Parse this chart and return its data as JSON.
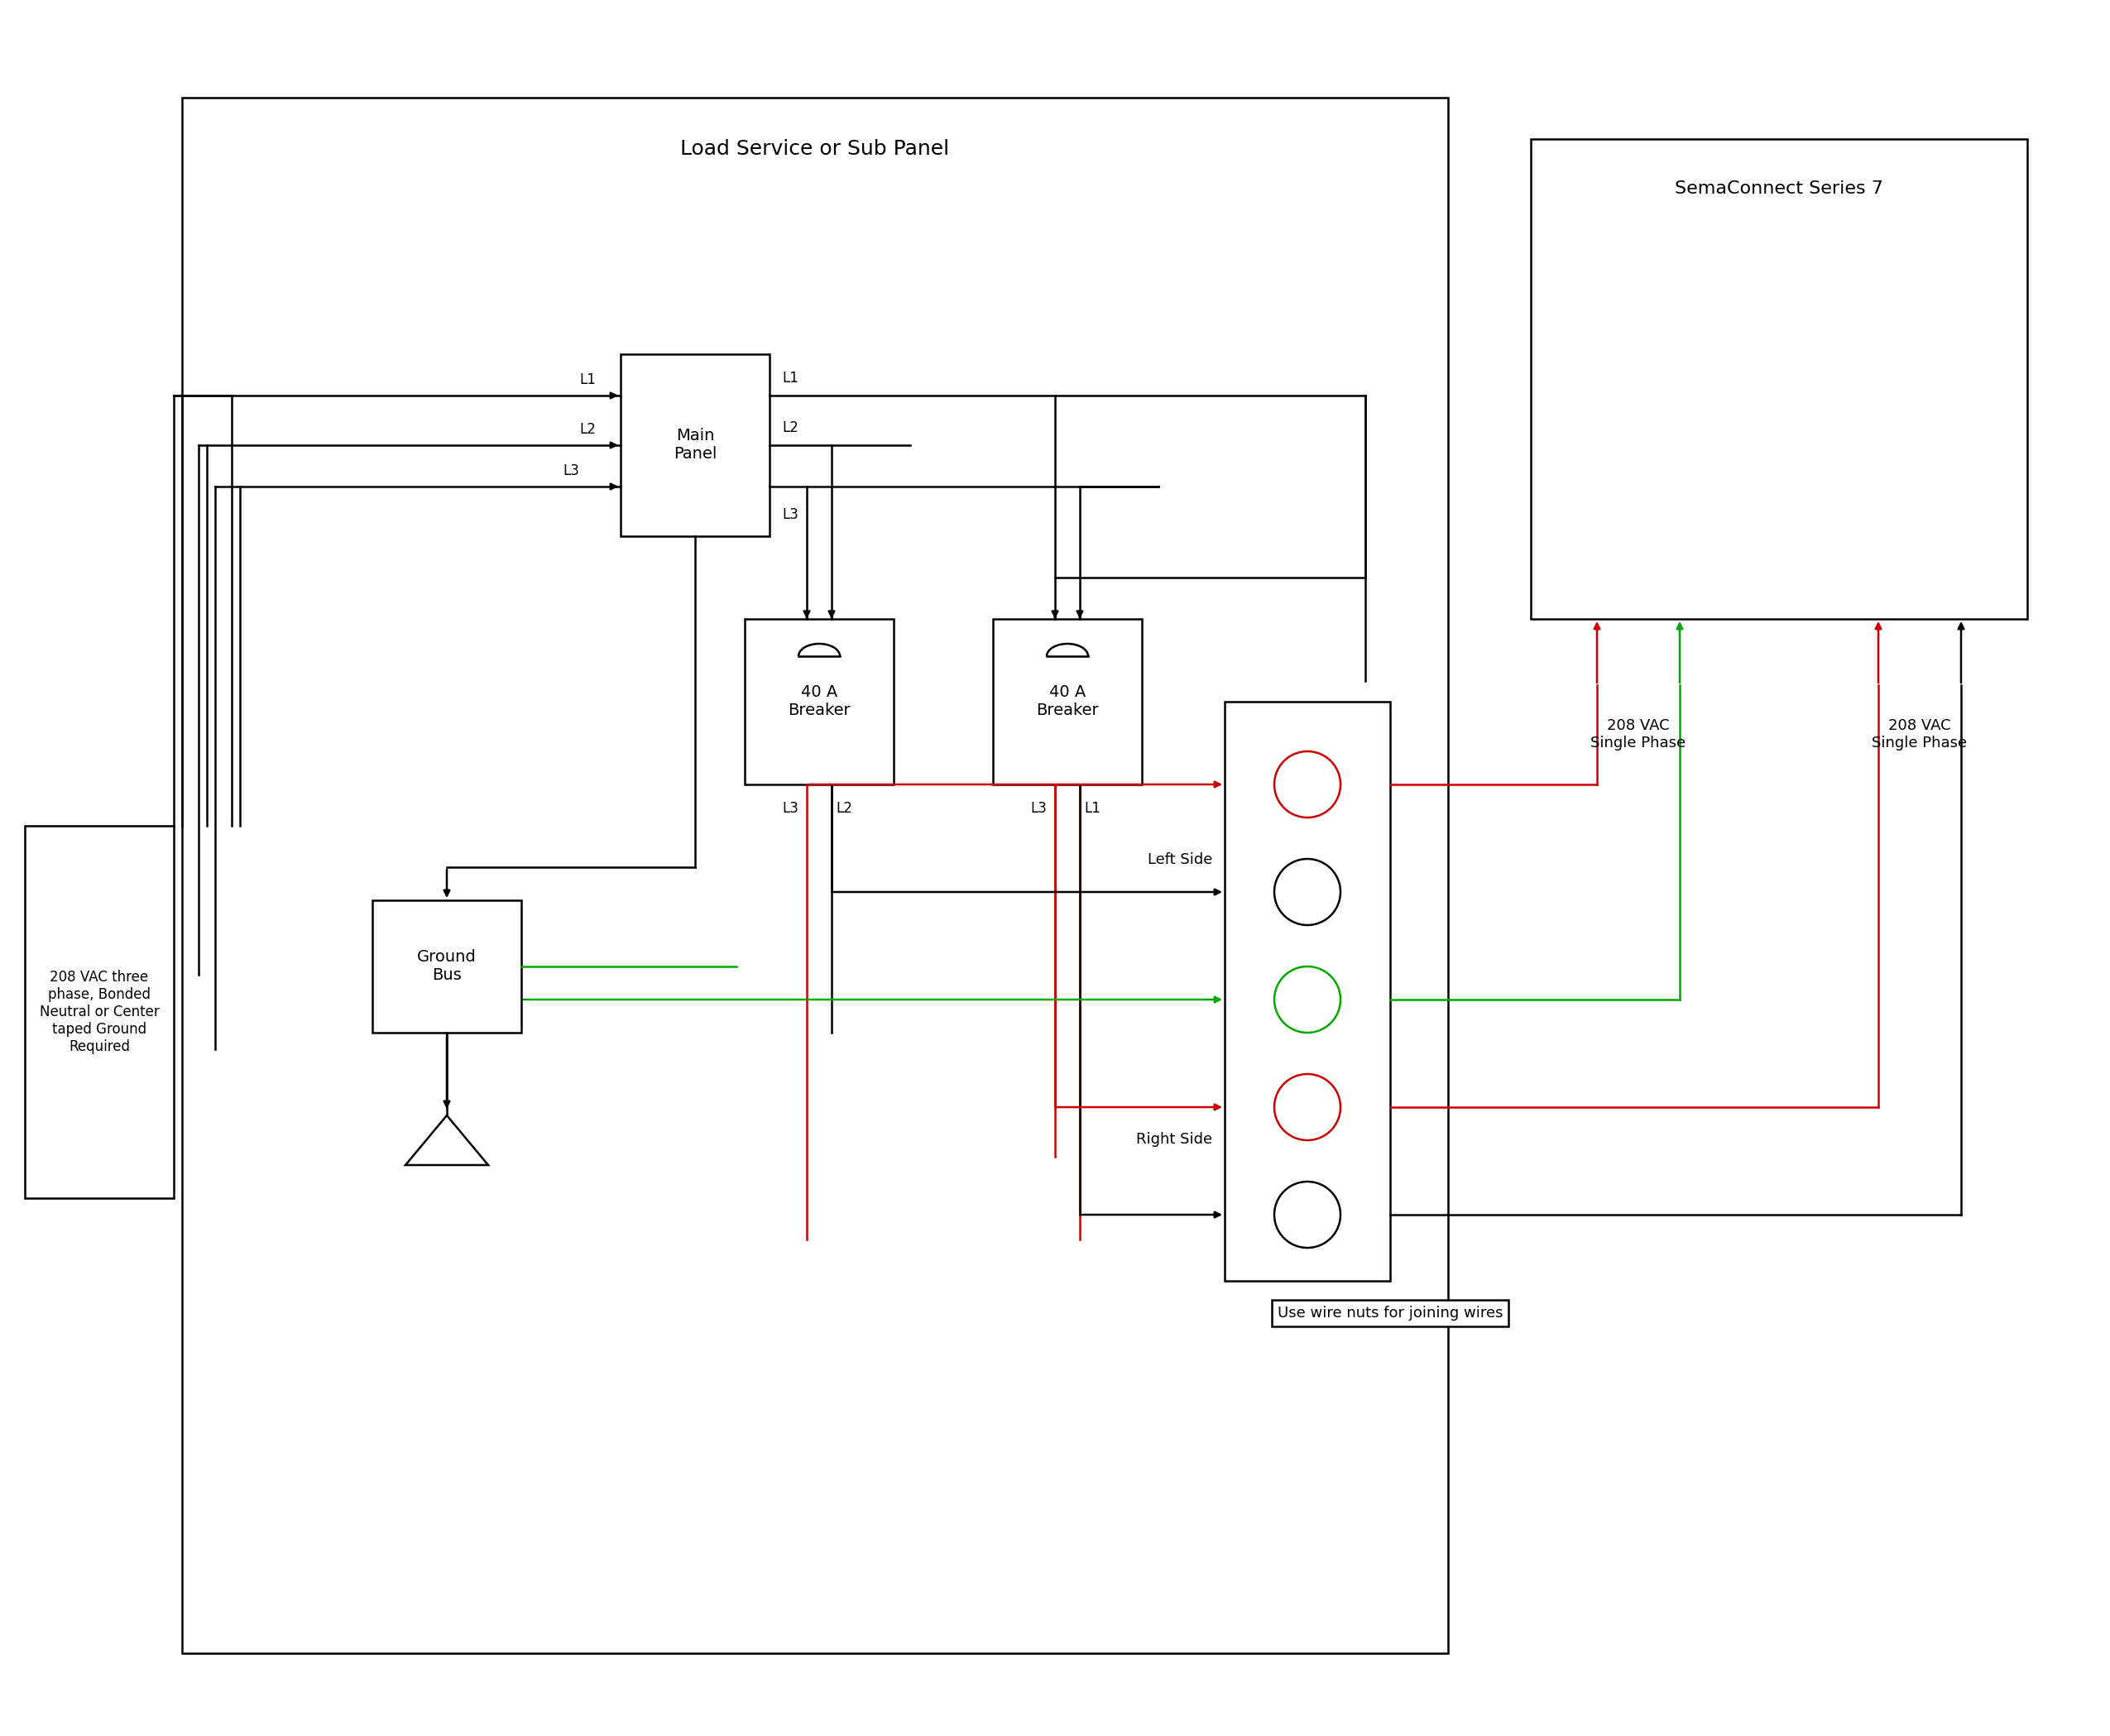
{
  "bg_color": "#ffffff",
  "line_color": "#000000",
  "red_color": "#cc0000",
  "green_color": "#00aa00",
  "title": "Load Service or Sub Panel",
  "sema_title": "SemaConnect Series 7",
  "source_label": "208 VAC three\nphase, Bonded\nNeutral or Center\ntaped Ground\nRequired",
  "ground_label": "Ground\nBus",
  "left_label": "Left Side",
  "right_label": "Right Side",
  "wire_nut_label": "Use wire nuts for joining wires",
  "phase1_label": "208 VAC\nSingle Phase",
  "phase2_label": "208 VAC\nSingle Phase"
}
